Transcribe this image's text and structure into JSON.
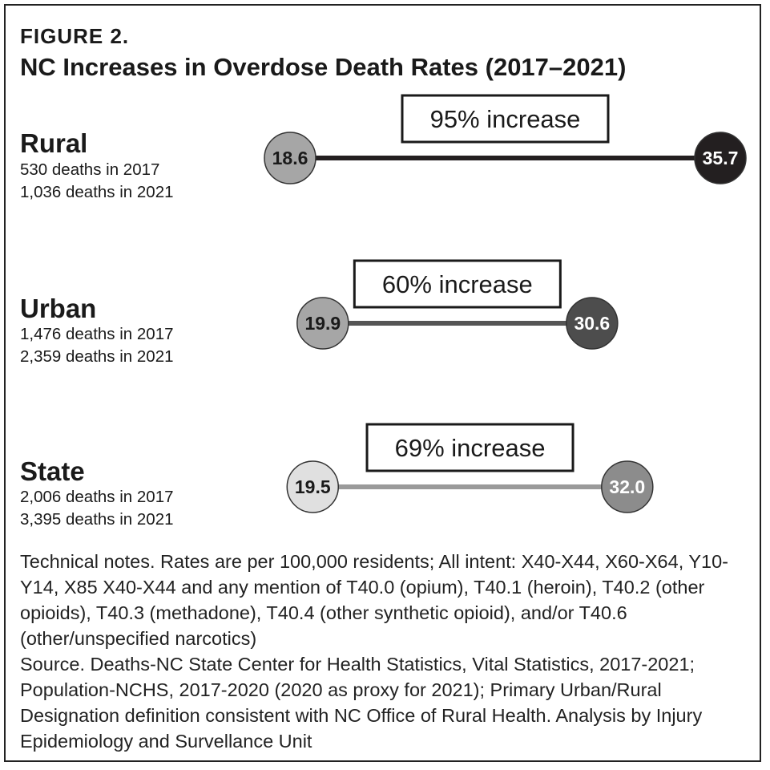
{
  "figure": {
    "label": "FIGURE 2.",
    "title": "NC Increases in Overdose Death Rates (2017–2021)"
  },
  "chart_data": {
    "type": "dumbbell",
    "title": "NC Increases in Overdose Death Rates (2017–2021)",
    "unit": "Rates are per 100,000 residents",
    "years": [
      "2017",
      "2021"
    ],
    "rows": [
      {
        "name": "Rural",
        "deaths_2017": "530 deaths in 2017",
        "deaths_2021": "1,036 deaths in 2021",
        "rate_2017": 18.6,
        "rate_2021": 35.7,
        "rate_2017_label": "18.6",
        "rate_2021_label": "35.7",
        "increase_label": "95% increase",
        "colors": {
          "start": "#a6a6a6",
          "end": "#231f20",
          "line": "#231f20",
          "start_text": "#1a1a1a",
          "end_text": "#ffffff"
        }
      },
      {
        "name": "Urban",
        "deaths_2017": "1,476 deaths in 2017",
        "deaths_2021": "2,359 deaths in 2021",
        "rate_2017": 19.9,
        "rate_2021": 30.6,
        "rate_2017_label": "19.9",
        "rate_2021_label": "30.6",
        "increase_label": "60% increase",
        "colors": {
          "start": "#a6a6a6",
          "end": "#4d4d4d",
          "line": "#555555",
          "start_text": "#1a1a1a",
          "end_text": "#ffffff"
        }
      },
      {
        "name": "State",
        "deaths_2017": "2,006 deaths in 2017",
        "deaths_2021": "3,395 deaths in 2021",
        "rate_2017": 19.5,
        "rate_2021": 32.0,
        "rate_2017_label": "19.5",
        "rate_2021_label": "32.0",
        "increase_label": "69% increase",
        "colors": {
          "start": "#e0e0e0",
          "end": "#8c8c8c",
          "line": "#9a9a9a",
          "start_text": "#1a1a1a",
          "end_text": "#ffffff"
        }
      }
    ]
  },
  "notes": {
    "technical": "Technical notes. Rates are per 100,000 residents; All intent: X40-X44, X60-X64, Y10-Y14, X85 X40-X44 and any mention of T40.0 (opium), T40.1 (heroin), T40.2 (other opioids), T40.3 (methadone), T40.4 (other synthetic opioid), and/or T40.6 (other/unspecified narcotics)",
    "source": "Source. Deaths-NC State Center for Health Statistics, Vital Statistics, 2017-2021; Population-NCHS, 2017-2020 (2020 as proxy for 2021); Primary Urban/Rural Designation definition consistent with NC Office of Rural Health. Analysis by Injury Epidemiology and Survellance Unit"
  }
}
